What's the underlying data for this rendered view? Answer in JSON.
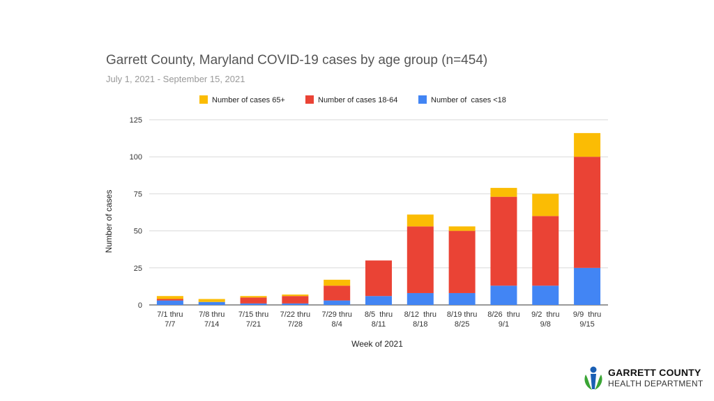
{
  "chart_data": {
    "type": "bar",
    "stacked": true,
    "title": "Garrett County, Maryland COVID-19 cases by age group (n=454)",
    "subtitle": "July 1, 2021 - September 15, 2021",
    "xlabel": "Week of 2021",
    "ylabel": "Number of cases",
    "ylim": [
      0,
      125
    ],
    "yticks": [
      0,
      25,
      50,
      75,
      100,
      125
    ],
    "grid": true,
    "legend_position": "top",
    "categories": [
      [
        "7/1 thru",
        "7/7"
      ],
      [
        "7/8 thru",
        "7/14"
      ],
      [
        "7/15 thru",
        "7/21"
      ],
      [
        "7/22 thru",
        "7/28"
      ],
      [
        "7/29 thru",
        "8/4"
      ],
      [
        "8/5  thru",
        "8/11"
      ],
      [
        "8/12  thru",
        "8/18"
      ],
      [
        "8/19 thru",
        "8/25"
      ],
      [
        "8/26  thru",
        "9/1"
      ],
      [
        "9/2  thru",
        "9/8"
      ],
      [
        "9/9  thru",
        "9/15"
      ]
    ],
    "series": [
      {
        "name": "Number of  cases <18",
        "color": "#4285F4",
        "values": [
          3,
          2,
          1,
          1,
          3,
          6,
          8,
          8,
          13,
          13,
          25
        ]
      },
      {
        "name": "Number of cases 18-64",
        "color": "#EA4335",
        "values": [
          1,
          0,
          4,
          5,
          10,
          24,
          45,
          42,
          60,
          47,
          75
        ]
      },
      {
        "name": "Number of cases 65+",
        "color": "#FBBC04",
        "values": [
          2,
          2,
          1,
          1,
          4,
          0,
          8,
          3,
          6,
          15,
          16
        ]
      }
    ],
    "legend_order": [
      "Number of cases 65+",
      "Number of cases 18-64",
      "Number of  cases <18"
    ]
  },
  "logo": {
    "line1": "GARRETT COUNTY",
    "line2": "HEALTH DEPARTMENT",
    "mark_colors": [
      "#1a5fb4",
      "#3aa535"
    ]
  }
}
